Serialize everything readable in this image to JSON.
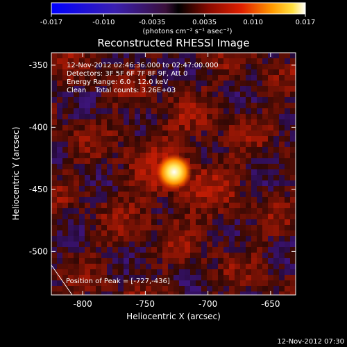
{
  "chart_data": {
    "type": "heatmap",
    "title": "Reconstructed RHESSI Image",
    "xlabel": "Heliocentric X (arcsec)",
    "ylabel": "Heliocentric Y (arcsec)",
    "xlim": [
      -825,
      -630
    ],
    "ylim": [
      -535,
      -340
    ],
    "x_ticks": [
      -800,
      -750,
      -700,
      -650
    ],
    "y_ticks": [
      -350,
      -400,
      -450,
      -500
    ],
    "colorbar": {
      "min": -0.017,
      "max": 0.017,
      "ticks": [
        "-0.017",
        "-0.010",
        "-0.0035",
        "0.0035",
        "0.010",
        "0.017"
      ],
      "tick_values": [
        -0.017,
        -0.01,
        -0.0035,
        0.0035,
        0.01,
        0.017
      ],
      "unit_label": "(photons cm⁻² s⁻¹ asec⁻²)"
    },
    "peak": {
      "x": -727,
      "y": -436,
      "value": 0.017
    },
    "info_lines": [
      "12-Nov-2012 02:46:36.000 to 02:47:00.000",
      "Detectors: 3F 5F 6F 7F 8F 9F, Att 0",
      "Energy Range: 6.0 - 12.0 keV",
      "Clean    Total counts: 3.26E+03"
    ],
    "peak_label": "Position of Peak = [-727,-436]"
  },
  "footer_timestamp": "12-Nov-2012 07:30"
}
